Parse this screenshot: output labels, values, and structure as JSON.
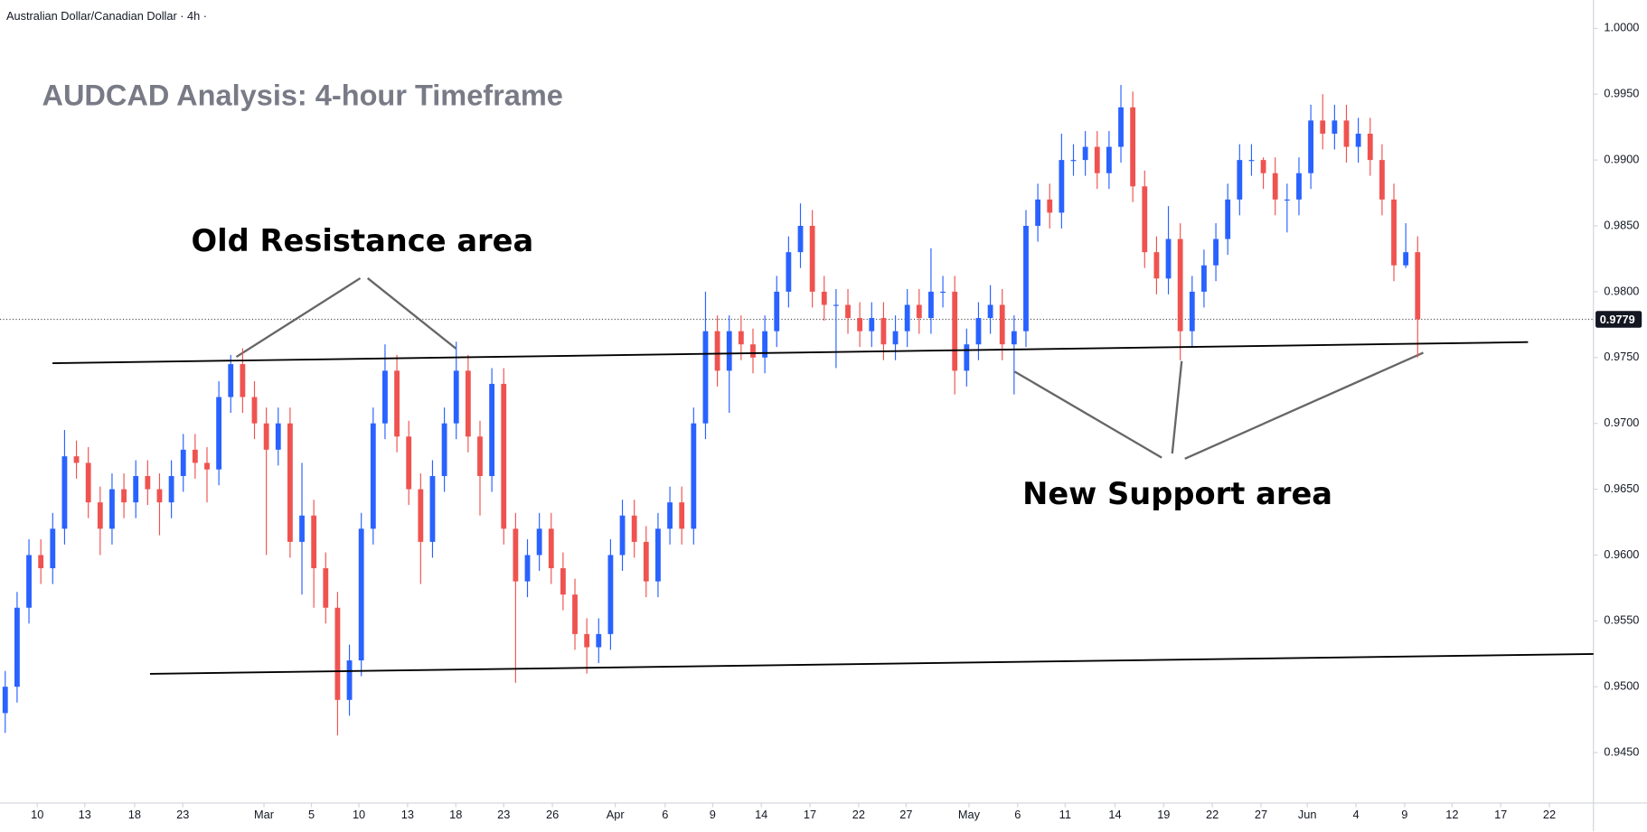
{
  "chart_data": {
    "type": "candlestick",
    "title": "Australian Dollar/Canadian Dollar · 4h ·",
    "subtitle": "AUDCAD Analysis: 4-hour Timeframe",
    "annotations": [
      {
        "text": "Old Resistance area"
      },
      {
        "text": "New Support area"
      }
    ],
    "up_color": "#2962ff",
    "down_color": "#ef5350",
    "open": [
      0.948,
      0.95,
      0.956,
      0.96,
      0.959,
      0.962,
      0.9675,
      0.967,
      0.964,
      0.962,
      0.965,
      0.964,
      0.966,
      0.965,
      0.964,
      0.966,
      0.968,
      0.967,
      0.9665,
      0.972,
      0.9745,
      0.972,
      0.97,
      0.968,
      0.97,
      0.961,
      0.963,
      0.959,
      0.956,
      0.949,
      0.952,
      0.962,
      0.97,
      0.974,
      0.969,
      0.965,
      0.961,
      0.966,
      0.97,
      0.974,
      0.969,
      0.966,
      0.973,
      0.962,
      0.958,
      0.96,
      0.962,
      0.959,
      0.957,
      0.954,
      0.953,
      0.954,
      0.96,
      0.963,
      0.961,
      0.958,
      0.962,
      0.964,
      0.962,
      0.97,
      0.977,
      0.974,
      0.977,
      0.976,
      0.975,
      0.977,
      0.98,
      0.983,
      0.985,
      0.98,
      0.979,
      0.979,
      0.978,
      0.977,
      0.978,
      0.976,
      0.977,
      0.979,
      0.978,
      0.98,
      0.98,
      0.974,
      0.976,
      0.978,
      0.979,
      0.976,
      0.977,
      0.985,
      0.987,
      0.986,
      0.99,
      0.99,
      0.991,
      0.989,
      0.991,
      0.994,
      0.988,
      0.983,
      0.981,
      0.984,
      0.977,
      0.98,
      0.982,
      0.984,
      0.987,
      0.99,
      0.99,
      0.989,
      0.987,
      0.987,
      0.989,
      0.993,
      0.992,
      0.993,
      0.991,
      0.992,
      0.99,
      0.987,
      0.982,
      0.983
    ],
    "high": [
      0.9512,
      0.9572,
      0.9612,
      0.9612,
      0.9632,
      0.9695,
      0.9687,
      0.9682,
      0.9652,
      0.9662,
      0.9662,
      0.9672,
      0.9672,
      0.9662,
      0.9672,
      0.9692,
      0.9692,
      0.9682,
      0.9732,
      0.9752,
      0.9757,
      0.9732,
      0.9712,
      0.9712,
      0.9712,
      0.967,
      0.9642,
      0.9602,
      0.9572,
      0.9532,
      0.9632,
      0.9712,
      0.976,
      0.9752,
      0.9702,
      0.9662,
      0.9672,
      0.9712,
      0.9762,
      0.9752,
      0.9702,
      0.9742,
      0.9742,
      0.9632,
      0.9612,
      0.9632,
      0.9632,
      0.9602,
      0.9582,
      0.9552,
      0.9552,
      0.9612,
      0.9642,
      0.9642,
      0.9622,
      0.9632,
      0.9652,
      0.9652,
      0.9712,
      0.98,
      0.9782,
      0.9782,
      0.9782,
      0.9772,
      0.9782,
      0.9812,
      0.9842,
      0.9867,
      0.9862,
      0.9812,
      0.9802,
      0.9802,
      0.9792,
      0.9792,
      0.9792,
      0.9782,
      0.9802,
      0.9802,
      0.9833,
      0.9812,
      0.9812,
      0.9772,
      0.9792,
      0.9805,
      0.9802,
      0.9782,
      0.9862,
      0.9882,
      0.9882,
      0.992,
      0.9912,
      0.9922,
      0.9922,
      0.9922,
      0.9957,
      0.9952,
      0.9892,
      0.9842,
      0.9865,
      0.9852,
      0.9812,
      0.9832,
      0.9852,
      0.9882,
      0.9912,
      0.9912,
      0.9902,
      0.9902,
      0.9882,
      0.9902,
      0.9942,
      0.995,
      0.9942,
      0.9942,
      0.9932,
      0.9932,
      0.9912,
      0.9882,
      0.9852,
      0.9842
    ],
    "low": [
      0.9465,
      0.9488,
      0.9548,
      0.9578,
      0.9578,
      0.9608,
      0.9658,
      0.9628,
      0.96,
      0.9608,
      0.9628,
      0.9628,
      0.9638,
      0.9615,
      0.9628,
      0.9648,
      0.9658,
      0.964,
      0.9653,
      0.9708,
      0.9708,
      0.9688,
      0.96,
      0.9668,
      0.9598,
      0.957,
      0.956,
      0.9548,
      0.9463,
      0.9478,
      0.9508,
      0.9608,
      0.9688,
      0.9678,
      0.9638,
      0.9578,
      0.9598,
      0.9648,
      0.9688,
      0.9678,
      0.963,
      0.9648,
      0.9608,
      0.9503,
      0.9568,
      0.9588,
      0.9578,
      0.9558,
      0.9528,
      0.951,
      0.9518,
      0.9528,
      0.9588,
      0.9598,
      0.9568,
      0.9568,
      0.9608,
      0.9608,
      0.9608,
      0.9688,
      0.9728,
      0.9708,
      0.9748,
      0.9738,
      0.9738,
      0.9758,
      0.9788,
      0.9818,
      0.9788,
      0.9778,
      0.9742,
      0.9768,
      0.9758,
      0.9758,
      0.9748,
      0.9748,
      0.9758,
      0.9768,
      0.9768,
      0.9788,
      0.9722,
      0.9728,
      0.9748,
      0.9768,
      0.9748,
      0.9722,
      0.9758,
      0.9838,
      0.9848,
      0.9848,
      0.9888,
      0.9888,
      0.9878,
      0.9878,
      0.9898,
      0.9868,
      0.9818,
      0.9798,
      0.9798,
      0.9748,
      0.9758,
      0.9788,
      0.9808,
      0.9828,
      0.9858,
      0.9888,
      0.9878,
      0.9858,
      0.9845,
      0.9858,
      0.9878,
      0.9908,
      0.9908,
      0.9898,
      0.9898,
      0.9888,
      0.9858,
      0.9808,
      0.9818,
      0.975
    ],
    "close": [
      0.95,
      0.956,
      0.96,
      0.959,
      0.962,
      0.9675,
      0.967,
      0.964,
      0.962,
      0.965,
      0.964,
      0.966,
      0.965,
      0.964,
      0.966,
      0.968,
      0.967,
      0.9665,
      0.972,
      0.9745,
      0.972,
      0.97,
      0.968,
      0.97,
      0.961,
      0.963,
      0.959,
      0.956,
      0.949,
      0.952,
      0.962,
      0.97,
      0.974,
      0.969,
      0.965,
      0.961,
      0.966,
      0.97,
      0.974,
      0.969,
      0.966,
      0.973,
      0.962,
      0.958,
      0.96,
      0.962,
      0.959,
      0.957,
      0.954,
      0.953,
      0.954,
      0.96,
      0.963,
      0.961,
      0.958,
      0.962,
      0.964,
      0.962,
      0.97,
      0.977,
      0.974,
      0.977,
      0.976,
      0.975,
      0.977,
      0.98,
      0.983,
      0.985,
      0.98,
      0.979,
      0.979,
      0.978,
      0.977,
      0.978,
      0.976,
      0.977,
      0.979,
      0.978,
      0.98,
      0.98,
      0.974,
      0.976,
      0.978,
      0.979,
      0.976,
      0.977,
      0.985,
      0.987,
      0.986,
      0.99,
      0.99,
      0.991,
      0.989,
      0.991,
      0.994,
      0.988,
      0.983,
      0.981,
      0.984,
      0.977,
      0.98,
      0.982,
      0.984,
      0.987,
      0.99,
      0.99,
      0.989,
      0.987,
      0.987,
      0.989,
      0.993,
      0.992,
      0.993,
      0.991,
      0.992,
      0.99,
      0.987,
      0.982,
      0.983,
      0.9779
    ],
    "last_price": {
      "value": 0.9779,
      "label": "0.9779"
    },
    "trend_lines": [
      {
        "x": [
          3.98,
          128.3
        ],
        "y": [
          0.97457,
          0.97617
        ]
      },
      {
        "x": [
          12.2,
          133.81
        ],
        "y": [
          0.95098,
          0.95249
        ]
      }
    ],
    "xlim": [
      -0.44,
      133.81
    ],
    "ylim": [
      0.94117,
      1.00215
    ],
    "xticks": [
      {
        "value": 2.7,
        "label": "10"
      },
      {
        "value": 6.7,
        "label": "13"
      },
      {
        "value": 10.9,
        "label": "18"
      },
      {
        "value": 14.96,
        "label": "23"
      },
      {
        "value": 21.8,
        "label": "Mar"
      },
      {
        "value": 25.8,
        "label": "5"
      },
      {
        "value": 29.8,
        "label": "10"
      },
      {
        "value": 33.9,
        "label": "13"
      },
      {
        "value": 37.96,
        "label": "18"
      },
      {
        "value": 42.0,
        "label": "23"
      },
      {
        "value": 46.1,
        "label": "26"
      },
      {
        "value": 51.4,
        "label": "Apr"
      },
      {
        "value": 55.6,
        "label": "6"
      },
      {
        "value": 59.6,
        "label": "9"
      },
      {
        "value": 63.7,
        "label": "14"
      },
      {
        "value": 67.8,
        "label": "17"
      },
      {
        "value": 71.9,
        "label": "22"
      },
      {
        "value": 75.9,
        "label": "27"
      },
      {
        "value": 81.2,
        "label": "May"
      },
      {
        "value": 85.3,
        "label": "6"
      },
      {
        "value": 89.3,
        "label": "11"
      },
      {
        "value": 93.5,
        "label": "14"
      },
      {
        "value": 97.6,
        "label": "19"
      },
      {
        "value": 101.7,
        "label": "22"
      },
      {
        "value": 105.8,
        "label": "27"
      },
      {
        "value": 109.7,
        "label": "Jun"
      },
      {
        "value": 113.8,
        "label": "4"
      },
      {
        "value": 117.9,
        "label": "9"
      },
      {
        "value": 121.9,
        "label": "12"
      },
      {
        "value": 126.0,
        "label": "17"
      },
      {
        "value": 130.1,
        "label": "22"
      }
    ],
    "yticks": [
      {
        "value": 1,
        "label": "1.0000"
      },
      {
        "value": 0.995,
        "label": "0.9950"
      },
      {
        "value": 0.99,
        "label": "0.9900"
      },
      {
        "value": 0.985,
        "label": "0.9850"
      },
      {
        "value": 0.98,
        "label": "0.9800"
      },
      {
        "value": 0.975,
        "label": "0.9750"
      },
      {
        "value": 0.97,
        "label": "0.9700"
      },
      {
        "value": 0.965,
        "label": "0.9650"
      },
      {
        "value": 0.96,
        "label": "0.9600"
      },
      {
        "value": 0.955,
        "label": "0.9550"
      },
      {
        "value": 0.95,
        "label": "0.9500"
      },
      {
        "value": 0.945,
        "label": "0.9450"
      }
    ]
  }
}
